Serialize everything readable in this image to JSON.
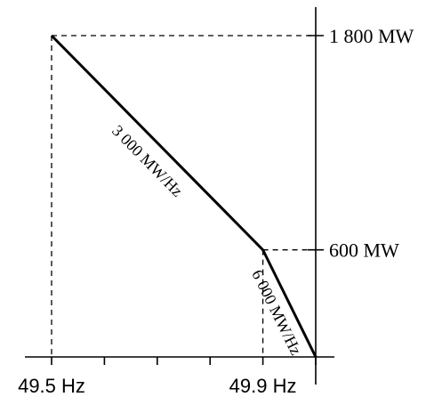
{
  "chart_data": {
    "type": "line",
    "x_unit": "Hz",
    "y_unit": "MW",
    "series": [
      {
        "points": [
          {
            "x": 49.5,
            "y": 1800
          },
          {
            "x": 49.9,
            "y": 600
          },
          {
            "x": 50.0,
            "y": 0
          }
        ]
      }
    ],
    "x_ticks": [
      {
        "value": 49.5,
        "label": "49.5 Hz"
      },
      {
        "value": 49.6,
        "label": ""
      },
      {
        "value": 49.7,
        "label": ""
      },
      {
        "value": 49.8,
        "label": ""
      },
      {
        "value": 49.9,
        "label": "49.9 Hz"
      }
    ],
    "y_ticks": [
      {
        "value": 600,
        "label": "600 MW"
      },
      {
        "value": 1800,
        "label": "1 800 MW"
      }
    ],
    "annotations": [
      {
        "text": "3 000 MW/Hz",
        "segment": 0
      },
      {
        "text": "6 000 MW/Hz",
        "segment": 1
      }
    ],
    "xlim": [
      49.4,
      50.0
    ],
    "ylim": [
      0,
      1900
    ],
    "grid": false,
    "y_axis_position": "right"
  }
}
